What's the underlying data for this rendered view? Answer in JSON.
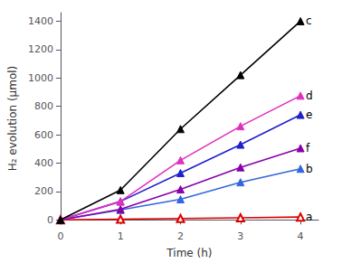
{
  "chart_data": {
    "type": "line",
    "x": [
      0,
      1,
      2,
      3,
      4
    ],
    "series": [
      {
        "name": "c",
        "color": "#000000",
        "marker": "triangle",
        "values": [
          0,
          210,
          640,
          1020,
          1400
        ]
      },
      {
        "name": "d",
        "color": "#e030c0",
        "marker": "triangle",
        "values": [
          0,
          130,
          420,
          660,
          875
        ]
      },
      {
        "name": "e",
        "color": "#2020cc",
        "marker": "triangle",
        "values": [
          0,
          130,
          330,
          530,
          740
        ]
      },
      {
        "name": "f",
        "color": "#8800aa",
        "marker": "triangle",
        "values": [
          0,
          75,
          215,
          370,
          505
        ]
      },
      {
        "name": "b",
        "color": "#3366dd",
        "marker": "triangle",
        "values": [
          0,
          70,
          145,
          265,
          360
        ]
      },
      {
        "name": "a",
        "color": "#dd0000",
        "marker": "triangle_open",
        "values": [
          0,
          5,
          10,
          15,
          20
        ]
      }
    ],
    "xlabel": "Time (h)",
    "ylabel": "H₂ evolution (μmol)",
    "xlim": [
      0,
      4.3
    ],
    "ylim": [
      -30,
      1460
    ],
    "xticks": [
      0,
      1,
      2,
      3,
      4
    ],
    "yticks": [
      0,
      200,
      400,
      600,
      800,
      1000,
      1200,
      1400
    ],
    "grid": false
  }
}
